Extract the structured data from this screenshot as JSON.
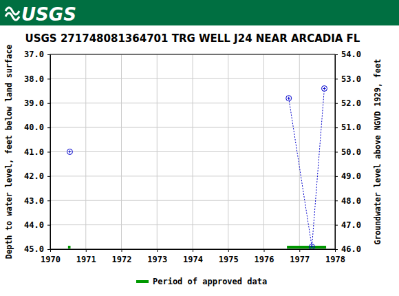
{
  "header": {
    "logo": "USGS"
  },
  "chart_data": {
    "type": "line",
    "title": "USGS 271748081364701 TRG WELL J24 NEAR ARCADIA FL",
    "y_label": "Depth to water level, feet below land surface",
    "y2_label": "Groundwater level above NGVD 1929, feet",
    "x": [
      1970.55,
      1973.5,
      1976.7,
      1977.35,
      1977.7
    ],
    "series": [
      {
        "color": "#0000cc",
        "marker": "circle",
        "line_style": "dotted",
        "values": [
          41.0,
          null,
          38.8,
          44.9,
          38.4
        ]
      }
    ],
    "xlim": [
      1970,
      1978
    ],
    "xticks": [
      1970,
      1971,
      1972,
      1973,
      1974,
      1975,
      1976,
      1977,
      1978
    ],
    "ylim": [
      45,
      37
    ],
    "yticks": [
      {
        "value": 37,
        "label": "37.0"
      },
      {
        "value": 38,
        "label": "38.0"
      },
      {
        "value": 39,
        "label": "39.0"
      },
      {
        "value": 40,
        "label": "40.0"
      },
      {
        "value": 41,
        "label": "41.0"
      },
      {
        "value": 42,
        "label": "42.0"
      },
      {
        "value": 43,
        "label": "43.0"
      },
      {
        "value": 44,
        "label": "44.0"
      },
      {
        "value": 45,
        "label": "45.0"
      }
    ],
    "y2lim": [
      46,
      54
    ],
    "y2ticks": [
      {
        "value": 54,
        "label": "54.0"
      },
      {
        "value": 53,
        "label": "53.0"
      },
      {
        "value": 52,
        "label": "52.0"
      },
      {
        "value": 51,
        "label": "51.0"
      },
      {
        "value": 50,
        "label": "50.0"
      },
      {
        "value": 49,
        "label": "49.0"
      },
      {
        "value": 48,
        "label": "48.0"
      },
      {
        "value": 47,
        "label": "47.0"
      },
      {
        "value": 46,
        "label": "46.0"
      }
    ],
    "periods": {
      "name": "Period of approved data",
      "color": "#009900",
      "ranges": [
        [
          1970.5,
          1970.57
        ],
        [
          1976.65,
          1977.75
        ]
      ]
    },
    "grid": true
  }
}
